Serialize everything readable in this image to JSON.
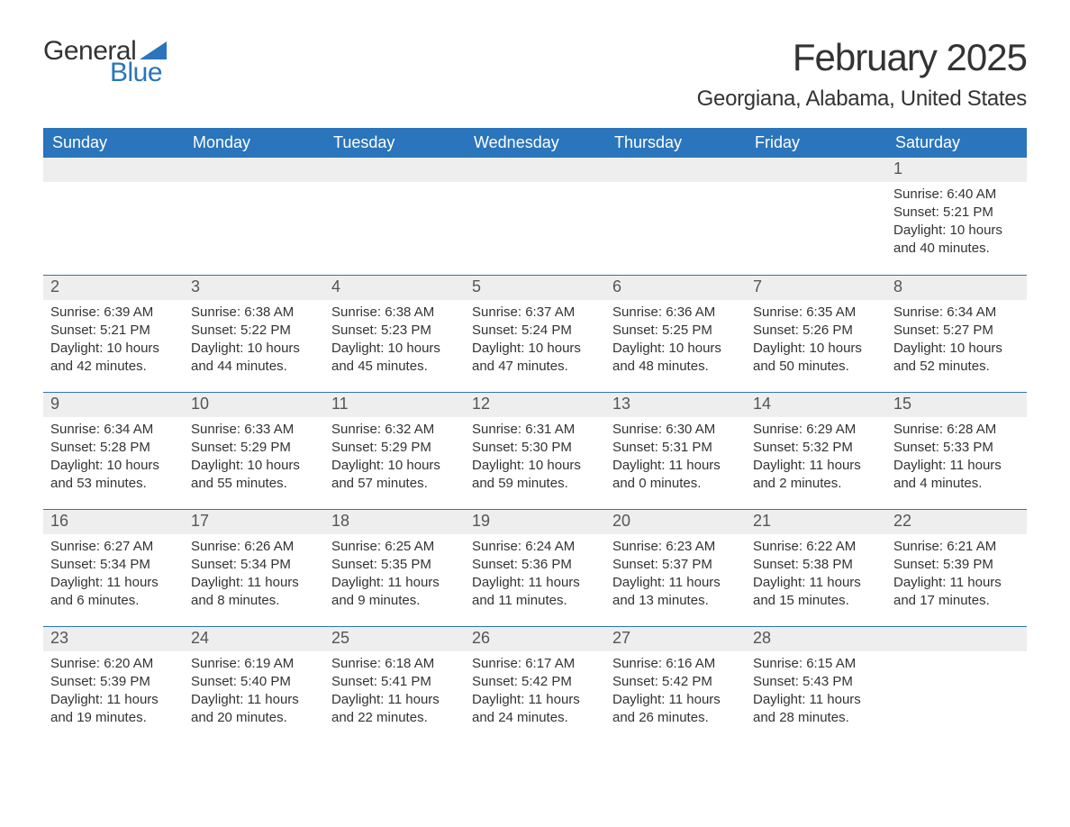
{
  "logo": {
    "text1": "General",
    "text2": "Blue",
    "accent_color": "#2a75bb"
  },
  "title": "February 2025",
  "location": "Georgiana, Alabama, United States",
  "colors": {
    "header_bg": "#2a75bb",
    "header_text": "#ffffff",
    "daynum_bg": "#eeeeee",
    "row_border": "#2a75bb",
    "body_text": "#333333",
    "page_bg": "#ffffff"
  },
  "fonts": {
    "title_size": 42,
    "location_size": 24,
    "header_size": 18,
    "daynum_size": 18,
    "body_size": 15
  },
  "day_headers": [
    "Sunday",
    "Monday",
    "Tuesday",
    "Wednesday",
    "Thursday",
    "Friday",
    "Saturday"
  ],
  "weeks": [
    [
      null,
      null,
      null,
      null,
      null,
      null,
      {
        "n": "1",
        "sunrise": "Sunrise: 6:40 AM",
        "sunset": "Sunset: 5:21 PM",
        "daylight": "Daylight: 10 hours and 40 minutes."
      }
    ],
    [
      {
        "n": "2",
        "sunrise": "Sunrise: 6:39 AM",
        "sunset": "Sunset: 5:21 PM",
        "daylight": "Daylight: 10 hours and 42 minutes."
      },
      {
        "n": "3",
        "sunrise": "Sunrise: 6:38 AM",
        "sunset": "Sunset: 5:22 PM",
        "daylight": "Daylight: 10 hours and 44 minutes."
      },
      {
        "n": "4",
        "sunrise": "Sunrise: 6:38 AM",
        "sunset": "Sunset: 5:23 PM",
        "daylight": "Daylight: 10 hours and 45 minutes."
      },
      {
        "n": "5",
        "sunrise": "Sunrise: 6:37 AM",
        "sunset": "Sunset: 5:24 PM",
        "daylight": "Daylight: 10 hours and 47 minutes."
      },
      {
        "n": "6",
        "sunrise": "Sunrise: 6:36 AM",
        "sunset": "Sunset: 5:25 PM",
        "daylight": "Daylight: 10 hours and 48 minutes."
      },
      {
        "n": "7",
        "sunrise": "Sunrise: 6:35 AM",
        "sunset": "Sunset: 5:26 PM",
        "daylight": "Daylight: 10 hours and 50 minutes."
      },
      {
        "n": "8",
        "sunrise": "Sunrise: 6:34 AM",
        "sunset": "Sunset: 5:27 PM",
        "daylight": "Daylight: 10 hours and 52 minutes."
      }
    ],
    [
      {
        "n": "9",
        "sunrise": "Sunrise: 6:34 AM",
        "sunset": "Sunset: 5:28 PM",
        "daylight": "Daylight: 10 hours and 53 minutes."
      },
      {
        "n": "10",
        "sunrise": "Sunrise: 6:33 AM",
        "sunset": "Sunset: 5:29 PM",
        "daylight": "Daylight: 10 hours and 55 minutes."
      },
      {
        "n": "11",
        "sunrise": "Sunrise: 6:32 AM",
        "sunset": "Sunset: 5:29 PM",
        "daylight": "Daylight: 10 hours and 57 minutes."
      },
      {
        "n": "12",
        "sunrise": "Sunrise: 6:31 AM",
        "sunset": "Sunset: 5:30 PM",
        "daylight": "Daylight: 10 hours and 59 minutes."
      },
      {
        "n": "13",
        "sunrise": "Sunrise: 6:30 AM",
        "sunset": "Sunset: 5:31 PM",
        "daylight": "Daylight: 11 hours and 0 minutes."
      },
      {
        "n": "14",
        "sunrise": "Sunrise: 6:29 AM",
        "sunset": "Sunset: 5:32 PM",
        "daylight": "Daylight: 11 hours and 2 minutes."
      },
      {
        "n": "15",
        "sunrise": "Sunrise: 6:28 AM",
        "sunset": "Sunset: 5:33 PM",
        "daylight": "Daylight: 11 hours and 4 minutes."
      }
    ],
    [
      {
        "n": "16",
        "sunrise": "Sunrise: 6:27 AM",
        "sunset": "Sunset: 5:34 PM",
        "daylight": "Daylight: 11 hours and 6 minutes."
      },
      {
        "n": "17",
        "sunrise": "Sunrise: 6:26 AM",
        "sunset": "Sunset: 5:34 PM",
        "daylight": "Daylight: 11 hours and 8 minutes."
      },
      {
        "n": "18",
        "sunrise": "Sunrise: 6:25 AM",
        "sunset": "Sunset: 5:35 PM",
        "daylight": "Daylight: 11 hours and 9 minutes."
      },
      {
        "n": "19",
        "sunrise": "Sunrise: 6:24 AM",
        "sunset": "Sunset: 5:36 PM",
        "daylight": "Daylight: 11 hours and 11 minutes."
      },
      {
        "n": "20",
        "sunrise": "Sunrise: 6:23 AM",
        "sunset": "Sunset: 5:37 PM",
        "daylight": "Daylight: 11 hours and 13 minutes."
      },
      {
        "n": "21",
        "sunrise": "Sunrise: 6:22 AM",
        "sunset": "Sunset: 5:38 PM",
        "daylight": "Daylight: 11 hours and 15 minutes."
      },
      {
        "n": "22",
        "sunrise": "Sunrise: 6:21 AM",
        "sunset": "Sunset: 5:39 PM",
        "daylight": "Daylight: 11 hours and 17 minutes."
      }
    ],
    [
      {
        "n": "23",
        "sunrise": "Sunrise: 6:20 AM",
        "sunset": "Sunset: 5:39 PM",
        "daylight": "Daylight: 11 hours and 19 minutes."
      },
      {
        "n": "24",
        "sunrise": "Sunrise: 6:19 AM",
        "sunset": "Sunset: 5:40 PM",
        "daylight": "Daylight: 11 hours and 20 minutes."
      },
      {
        "n": "25",
        "sunrise": "Sunrise: 6:18 AM",
        "sunset": "Sunset: 5:41 PM",
        "daylight": "Daylight: 11 hours and 22 minutes."
      },
      {
        "n": "26",
        "sunrise": "Sunrise: 6:17 AM",
        "sunset": "Sunset: 5:42 PM",
        "daylight": "Daylight: 11 hours and 24 minutes."
      },
      {
        "n": "27",
        "sunrise": "Sunrise: 6:16 AM",
        "sunset": "Sunset: 5:42 PM",
        "daylight": "Daylight: 11 hours and 26 minutes."
      },
      {
        "n": "28",
        "sunrise": "Sunrise: 6:15 AM",
        "sunset": "Sunset: 5:43 PM",
        "daylight": "Daylight: 11 hours and 28 minutes."
      },
      null
    ]
  ]
}
